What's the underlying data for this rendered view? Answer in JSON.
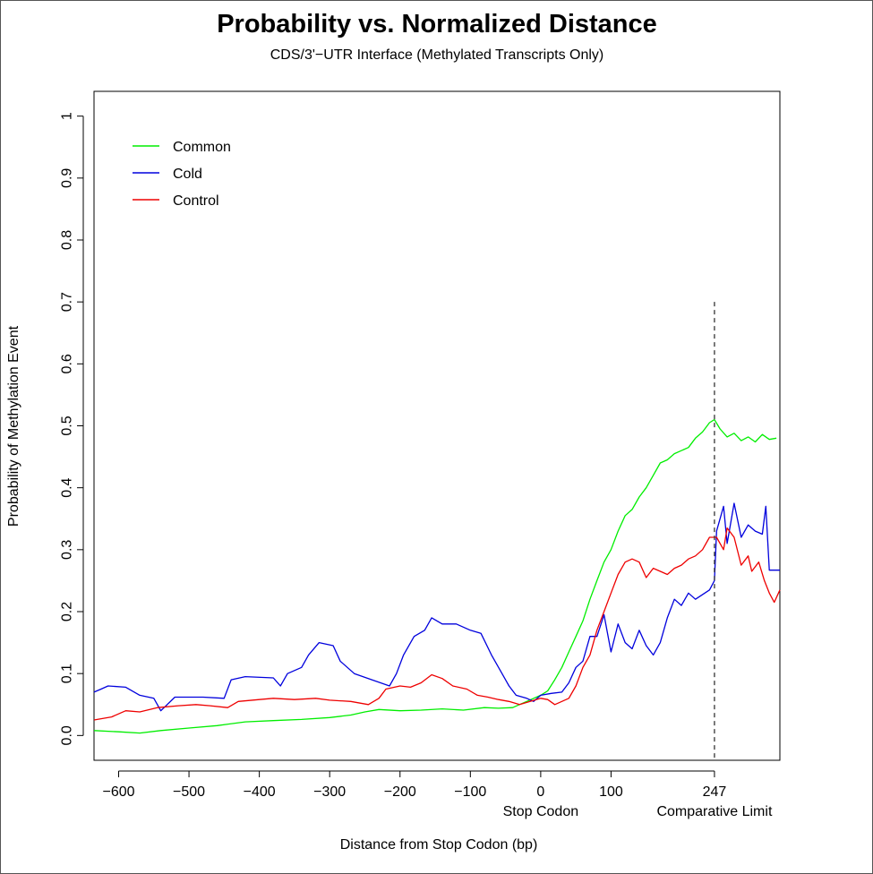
{
  "colors": {
    "common": "#00ee00",
    "cold": "#0000dd",
    "control": "#ee0000",
    "refline": "#333333"
  },
  "chart_data": {
    "type": "line",
    "title": "Probability vs. Normalized Distance",
    "subtitle": "CDS/3'−UTR Interface (Methylated Transcripts Only)",
    "xlabel": "Distance from Stop Codon (bp)",
    "ylabel": "Probability of Methylation Event",
    "xlim": [
      -635,
      340
    ],
    "ylim": [
      -0.04,
      1.04
    ],
    "x_ticks": [
      {
        "value": -600,
        "label": "−600"
      },
      {
        "value": -500,
        "label": "−500"
      },
      {
        "value": -400,
        "label": "−400"
      },
      {
        "value": -300,
        "label": "−300"
      },
      {
        "value": -200,
        "label": "−200"
      },
      {
        "value": -100,
        "label": "−100"
      },
      {
        "value": 0,
        "label": "0"
      },
      {
        "value": 100,
        "label": "100"
      },
      {
        "value": 247,
        "label": "247"
      }
    ],
    "x_annotations": [
      {
        "value": 0,
        "label": "Stop Codon"
      },
      {
        "value": 247,
        "label": "Comparative Limit"
      }
    ],
    "y_ticks": [
      {
        "value": 0,
        "label": "0.0"
      },
      {
        "value": 0.1,
        "label": "0.1"
      },
      {
        "value": 0.2,
        "label": "0.2"
      },
      {
        "value": 0.3,
        "label": "0.3"
      },
      {
        "value": 0.4,
        "label": "0.4"
      },
      {
        "value": 0.5,
        "label": "0.5"
      },
      {
        "value": 0.6,
        "label": "0.6"
      },
      {
        "value": 0.7,
        "label": "0.7"
      },
      {
        "value": 0.8,
        "label": "0.8"
      },
      {
        "value": 0.9,
        "label": "0.9"
      },
      {
        "value": 1,
        "label": "1"
      }
    ],
    "reference_line": {
      "x": 247,
      "y_from": -0.04,
      "y_to": 0.7,
      "style": "dashed"
    },
    "legend_position": "top-left",
    "series": [
      {
        "name": "Common",
        "color": "#00ee00",
        "points": [
          [
            -635,
            0.008
          ],
          [
            -600,
            0.006
          ],
          [
            -570,
            0.004
          ],
          [
            -540,
            0.008
          ],
          [
            -500,
            0.012
          ],
          [
            -460,
            0.016
          ],
          [
            -420,
            0.022
          ],
          [
            -380,
            0.024
          ],
          [
            -340,
            0.026
          ],
          [
            -300,
            0.029
          ],
          [
            -270,
            0.033
          ],
          [
            -250,
            0.038
          ],
          [
            -230,
            0.042
          ],
          [
            -200,
            0.04
          ],
          [
            -170,
            0.041
          ],
          [
            -140,
            0.043
          ],
          [
            -110,
            0.041
          ],
          [
            -80,
            0.045
          ],
          [
            -60,
            0.044
          ],
          [
            -40,
            0.045
          ],
          [
            -20,
            0.055
          ],
          [
            0,
            0.065
          ],
          [
            10,
            0.072
          ],
          [
            20,
            0.09
          ],
          [
            30,
            0.11
          ],
          [
            40,
            0.135
          ],
          [
            50,
            0.16
          ],
          [
            60,
            0.185
          ],
          [
            70,
            0.22
          ],
          [
            80,
            0.25
          ],
          [
            90,
            0.28
          ],
          [
            100,
            0.3
          ],
          [
            110,
            0.33
          ],
          [
            120,
            0.355
          ],
          [
            130,
            0.365
          ],
          [
            140,
            0.385
          ],
          [
            150,
            0.4
          ],
          [
            160,
            0.42
          ],
          [
            170,
            0.44
          ],
          [
            180,
            0.445
          ],
          [
            190,
            0.455
          ],
          [
            200,
            0.46
          ],
          [
            210,
            0.465
          ],
          [
            220,
            0.48
          ],
          [
            230,
            0.49
          ],
          [
            240,
            0.505
          ],
          [
            247,
            0.51
          ],
          [
            255,
            0.495
          ],
          [
            265,
            0.482
          ],
          [
            275,
            0.488
          ],
          [
            285,
            0.476
          ],
          [
            295,
            0.482
          ],
          [
            305,
            0.474
          ],
          [
            315,
            0.486
          ],
          [
            325,
            0.478
          ],
          [
            335,
            0.48
          ]
        ]
      },
      {
        "name": "Cold",
        "color": "#0000dd",
        "points": [
          [
            -635,
            0.07
          ],
          [
            -625,
            0.075
          ],
          [
            -615,
            0.08
          ],
          [
            -590,
            0.078
          ],
          [
            -570,
            0.065
          ],
          [
            -550,
            0.06
          ],
          [
            -540,
            0.04
          ],
          [
            -520,
            0.062
          ],
          [
            -480,
            0.062
          ],
          [
            -450,
            0.06
          ],
          [
            -440,
            0.09
          ],
          [
            -420,
            0.095
          ],
          [
            -380,
            0.093
          ],
          [
            -370,
            0.08
          ],
          [
            -360,
            0.1
          ],
          [
            -340,
            0.11
          ],
          [
            -330,
            0.13
          ],
          [
            -315,
            0.15
          ],
          [
            -295,
            0.145
          ],
          [
            -285,
            0.12
          ],
          [
            -265,
            0.1
          ],
          [
            -240,
            0.09
          ],
          [
            -215,
            0.08
          ],
          [
            -205,
            0.1
          ],
          [
            -195,
            0.13
          ],
          [
            -180,
            0.16
          ],
          [
            -165,
            0.17
          ],
          [
            -155,
            0.19
          ],
          [
            -140,
            0.18
          ],
          [
            -120,
            0.18
          ],
          [
            -100,
            0.17
          ],
          [
            -85,
            0.165
          ],
          [
            -70,
            0.13
          ],
          [
            -55,
            0.1
          ],
          [
            -45,
            0.08
          ],
          [
            -35,
            0.065
          ],
          [
            -20,
            0.06
          ],
          [
            -10,
            0.055
          ],
          [
            0,
            0.065
          ],
          [
            15,
            0.068
          ],
          [
            30,
            0.07
          ],
          [
            40,
            0.085
          ],
          [
            50,
            0.11
          ],
          [
            60,
            0.12
          ],
          [
            70,
            0.16
          ],
          [
            80,
            0.16
          ],
          [
            90,
            0.195
          ],
          [
            100,
            0.135
          ],
          [
            110,
            0.18
          ],
          [
            120,
            0.15
          ],
          [
            130,
            0.14
          ],
          [
            140,
            0.17
          ],
          [
            150,
            0.145
          ],
          [
            160,
            0.13
          ],
          [
            170,
            0.15
          ],
          [
            180,
            0.19
          ],
          [
            190,
            0.22
          ],
          [
            200,
            0.21
          ],
          [
            210,
            0.23
          ],
          [
            220,
            0.22
          ],
          [
            240,
            0.235
          ],
          [
            247,
            0.25
          ],
          [
            250,
            0.33
          ],
          [
            260,
            0.37
          ],
          [
            265,
            0.31
          ],
          [
            275,
            0.375
          ],
          [
            285,
            0.32
          ],
          [
            295,
            0.34
          ],
          [
            305,
            0.33
          ],
          [
            315,
            0.325
          ],
          [
            320,
            0.37
          ],
          [
            325,
            0.267
          ],
          [
            340,
            0.267
          ]
        ]
      },
      {
        "name": "Control",
        "color": "#ee0000",
        "points": [
          [
            -635,
            0.025
          ],
          [
            -610,
            0.03
          ],
          [
            -590,
            0.04
          ],
          [
            -570,
            0.038
          ],
          [
            -545,
            0.045
          ],
          [
            -515,
            0.048
          ],
          [
            -490,
            0.05
          ],
          [
            -470,
            0.048
          ],
          [
            -445,
            0.045
          ],
          [
            -430,
            0.055
          ],
          [
            -400,
            0.058
          ],
          [
            -380,
            0.06
          ],
          [
            -350,
            0.058
          ],
          [
            -320,
            0.06
          ],
          [
            -300,
            0.057
          ],
          [
            -270,
            0.055
          ],
          [
            -245,
            0.05
          ],
          [
            -230,
            0.06
          ],
          [
            -220,
            0.075
          ],
          [
            -200,
            0.08
          ],
          [
            -185,
            0.078
          ],
          [
            -170,
            0.085
          ],
          [
            -155,
            0.098
          ],
          [
            -140,
            0.092
          ],
          [
            -125,
            0.08
          ],
          [
            -105,
            0.075
          ],
          [
            -90,
            0.065
          ],
          [
            -75,
            0.062
          ],
          [
            -60,
            0.058
          ],
          [
            -45,
            0.055
          ],
          [
            -30,
            0.05
          ],
          [
            -15,
            0.055
          ],
          [
            0,
            0.06
          ],
          [
            10,
            0.058
          ],
          [
            20,
            0.05
          ],
          [
            30,
            0.055
          ],
          [
            40,
            0.06
          ],
          [
            50,
            0.08
          ],
          [
            60,
            0.11
          ],
          [
            70,
            0.13
          ],
          [
            80,
            0.17
          ],
          [
            90,
            0.2
          ],
          [
            100,
            0.23
          ],
          [
            110,
            0.26
          ],
          [
            120,
            0.28
          ],
          [
            130,
            0.285
          ],
          [
            140,
            0.28
          ],
          [
            150,
            0.255
          ],
          [
            160,
            0.27
          ],
          [
            170,
            0.265
          ],
          [
            180,
            0.26
          ],
          [
            190,
            0.27
          ],
          [
            200,
            0.275
          ],
          [
            210,
            0.285
          ],
          [
            220,
            0.29
          ],
          [
            230,
            0.3
          ],
          [
            240,
            0.32
          ],
          [
            250,
            0.32
          ],
          [
            260,
            0.3
          ],
          [
            265,
            0.335
          ],
          [
            275,
            0.32
          ],
          [
            285,
            0.275
          ],
          [
            295,
            0.29
          ],
          [
            300,
            0.265
          ],
          [
            310,
            0.28
          ],
          [
            318,
            0.25
          ],
          [
            325,
            0.23
          ],
          [
            332,
            0.215
          ],
          [
            340,
            0.235
          ]
        ]
      }
    ]
  }
}
